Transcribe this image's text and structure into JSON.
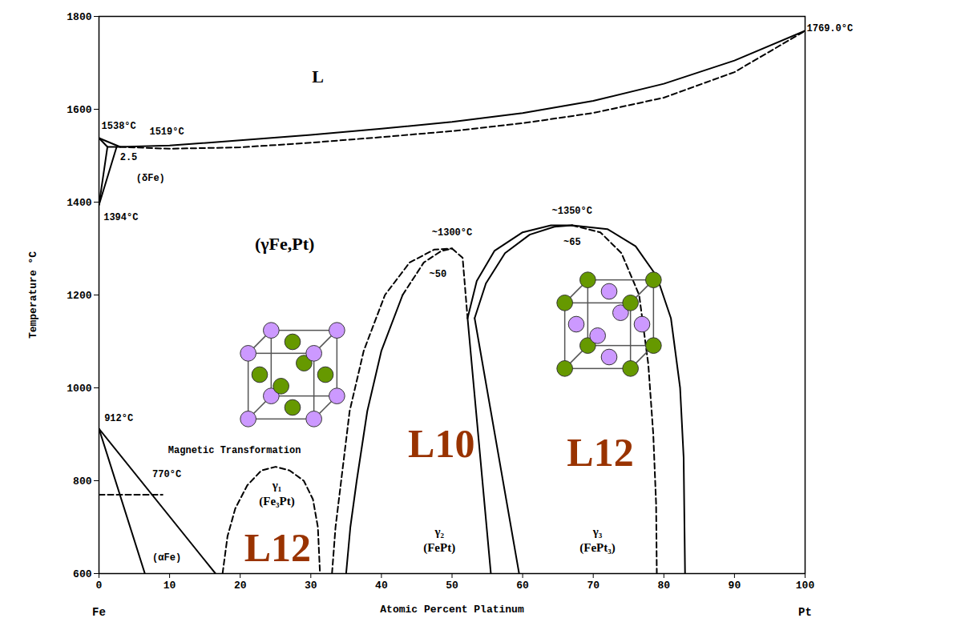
{
  "chart_data": {
    "type": "line",
    "x_label": "Atomic Percent Platinum",
    "y_label": "Temperature °C",
    "xlim": [
      0,
      100
    ],
    "ylim": [
      600,
      1800
    ],
    "xticks": [
      0,
      10,
      20,
      30,
      40,
      50,
      60,
      70,
      80,
      90,
      100
    ],
    "yticks": [
      600,
      800,
      1000,
      1200,
      1400,
      1600,
      1800
    ],
    "grid": false,
    "color": "#000000",
    "components": [
      "Fe",
      "Pt"
    ],
    "series": [
      {
        "x": [
          0,
          3,
          10,
          20,
          30,
          40,
          50,
          60,
          70,
          80,
          90,
          100
        ],
        "values": [
          1538,
          1519,
          1522,
          1533,
          1545,
          1558,
          1573,
          1592,
          1618,
          1655,
          1705,
          1769
        ],
        "line_style": "solid"
      },
      {
        "x": [
          3,
          10,
          20,
          30,
          40,
          50,
          60,
          70,
          80,
          90,
          100
        ],
        "values": [
          1519,
          1515,
          1518,
          1528,
          1540,
          1553,
          1570,
          1592,
          1625,
          1680,
          1769
        ],
        "line_style": "dashed"
      },
      {
        "x": [
          0,
          1.2
        ],
        "values": [
          1538,
          1519
        ],
        "line_style": "solid"
      },
      {
        "x": [
          1.2,
          3
        ],
        "values": [
          1519,
          1519
        ],
        "line_style": "solid"
      },
      {
        "x": [
          0,
          1.2
        ],
        "values": [
          1394,
          1519
        ],
        "line_style": "solid"
      },
      {
        "x": [
          0,
          2.5
        ],
        "values": [
          1394,
          1519
        ],
        "line_style": "solid"
      },
      {
        "x": [
          0,
          6.5
        ],
        "values": [
          912,
          600
        ],
        "line_style": "solid"
      },
      {
        "x": [
          0,
          16.5
        ],
        "values": [
          912,
          600
        ],
        "line_style": "solid"
      },
      {
        "x": [
          0,
          9
        ],
        "values": [
          770,
          770
        ],
        "line_style": "dashed"
      },
      {
        "x": [
          17.5,
          18.2,
          19.3,
          21,
          23,
          25,
          27,
          29,
          30.3,
          31,
          31.3
        ],
        "values": [
          600,
          680,
          740,
          790,
          822,
          830,
          822,
          800,
          760,
          700,
          600
        ],
        "line_style": "dashed"
      },
      {
        "x": [
          35,
          35.6,
          36.5,
          38,
          40,
          43
        ],
        "values": [
          600,
          700,
          800,
          950,
          1080,
          1200
        ],
        "line_style": "solid"
      },
      {
        "x": [
          43,
          46,
          48.5,
          50
        ],
        "values": [
          1200,
          1270,
          1295,
          1300
        ],
        "line_style": "dashed"
      },
      {
        "x": [
          33,
          33.5,
          34.3,
          35.5,
          37.5,
          40.5,
          44,
          47.5,
          50
        ],
        "values": [
          600,
          700,
          800,
          950,
          1080,
          1200,
          1270,
          1298,
          1300
        ],
        "line_style": "dashed"
      },
      {
        "x": [
          50,
          51.5,
          52.2
        ],
        "values": [
          1300,
          1280,
          1150
        ],
        "line_style": "dashed"
      },
      {
        "x": [
          52.2,
          55.5
        ],
        "values": [
          1150,
          600
        ],
        "line_style": "solid"
      },
      {
        "x": [
          53.2,
          59.5
        ],
        "values": [
          1150,
          600
        ],
        "line_style": "solid"
      },
      {
        "x": [
          52.2,
          53.5,
          56,
          60,
          64,
          67
        ],
        "values": [
          1150,
          1230,
          1295,
          1335,
          1350,
          1350
        ],
        "line_style": "solid"
      },
      {
        "x": [
          53.2,
          54.8,
          57.5,
          61,
          64.5,
          67
        ],
        "values": [
          1150,
          1225,
          1290,
          1330,
          1347,
          1350
        ],
        "line_style": "solid"
      },
      {
        "x": [
          67,
          71,
          74,
          76.5,
          77.8,
          78.5,
          78.9,
          79
        ],
        "values": [
          1350,
          1335,
          1290,
          1200,
          1050,
          900,
          750,
          600
        ],
        "line_style": "dashed"
      },
      {
        "x": [
          67,
          72,
          76,
          79,
          81,
          82.3,
          82.8,
          83
        ],
        "values": [
          1350,
          1342,
          1305,
          1240,
          1150,
          1000,
          850,
          600
        ],
        "line_style": "solid"
      }
    ],
    "annotations": [
      {
        "text": "1538°C",
        "x": 2.8,
        "y": 1565
      },
      {
        "text": "1519°C",
        "x": 9.6,
        "y": 1552
      },
      {
        "text": "2.5",
        "x": 4.2,
        "y": 1497
      },
      {
        "text": "(δFe)",
        "x": 7.3,
        "y": 1452
      },
      {
        "text": "1394°C",
        "x": 3.1,
        "y": 1368
      },
      {
        "text": "912°C",
        "x": 2.8,
        "y": 935
      },
      {
        "text": "Magnetic Transformation",
        "x": 19.2,
        "y": 866
      },
      {
        "text": "770°C",
        "x": 9.6,
        "y": 815
      },
      {
        "text": "(αFe)",
        "x": 9.6,
        "y": 635
      },
      {
        "text": "1769.0°C",
        "x": 103.5,
        "y": 1775
      },
      {
        "text": "~1300°C",
        "x": 50,
        "y": 1335
      },
      {
        "text": "~50",
        "x": 48,
        "y": 1245
      },
      {
        "text": "~1350°C",
        "x": 67,
        "y": 1382
      },
      {
        "text": "~65",
        "x": 67,
        "y": 1315
      }
    ],
    "phase_labels": [
      {
        "text": "L",
        "x": 31,
        "y": 1670
      },
      {
        "text": "(γFe,Pt)",
        "x": 26.3,
        "y": 1309
      }
    ],
    "region_labels": [
      {
        "text": "γ₁",
        "x": 25.2,
        "y": 790
      },
      {
        "text": "(Fe₃Pt)",
        "x": 25.2,
        "y": 755
      },
      {
        "text": "γ₂",
        "x": 48.2,
        "y": 690
      },
      {
        "text": "(FePt)",
        "x": 48.2,
        "y": 655
      },
      {
        "text": "γ₃",
        "x": 70.6,
        "y": 690
      },
      {
        "text": "(FePt₃)",
        "x": 70.6,
        "y": 655
      }
    ],
    "structure_labels": [
      {
        "text": "L10",
        "x": 48.5,
        "y": 878,
        "color": "#993300"
      },
      {
        "text": "L12",
        "x": 71,
        "y": 860,
        "color": "#993300"
      },
      {
        "text": "L12",
        "x": 25.3,
        "y": 655,
        "color": "#993300"
      }
    ]
  }
}
